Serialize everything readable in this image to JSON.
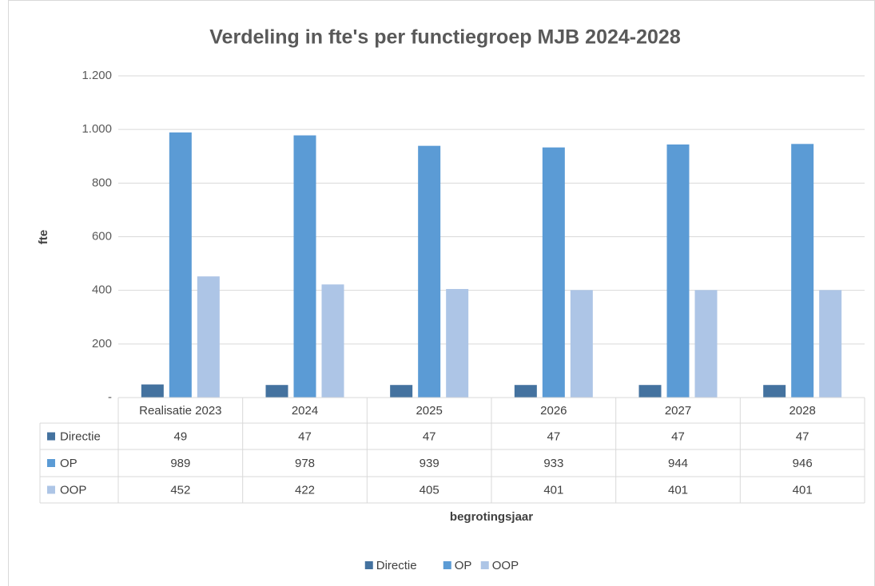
{
  "chart_data": {
    "type": "bar",
    "title": "Verdeling in fte's per functiegroep MJB 2024-2028",
    "y_label": "fte",
    "x_label": "begrotingsjaar",
    "categories": [
      "Realisatie 2023",
      "2024",
      "2025",
      "2026",
      "2027",
      "2028"
    ],
    "series": [
      {
        "name": "Directie",
        "color": "#44729f",
        "values": [
          49,
          47,
          47,
          47,
          47,
          47
        ]
      },
      {
        "name": "OP",
        "color": "#5b9bd5",
        "values": [
          989,
          978,
          939,
          933,
          944,
          946
        ]
      },
      {
        "name": "OOP",
        "color": "#adc5e6",
        "values": [
          452,
          422,
          405,
          401,
          401,
          401
        ]
      }
    ],
    "ylim": [
      0,
      1200
    ],
    "yticks": [
      {
        "value": 0,
        "label": "-"
      },
      200,
      400,
      600,
      800,
      {
        "value": 1000,
        "label": "1.000"
      },
      {
        "value": 1200,
        "label": "1.200"
      }
    ],
    "grid": true,
    "data_table": true,
    "legend": "bottom"
  }
}
